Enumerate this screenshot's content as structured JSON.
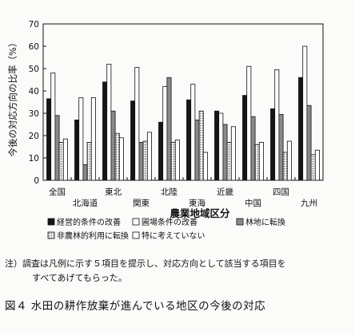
{
  "chart_data": {
    "type": "bar",
    "ylabel": "今後の対応方向の比率（%）",
    "xlabel": "農業地域区分",
    "ylim": [
      0,
      70
    ],
    "yticks": [
      0,
      10,
      20,
      30,
      40,
      50,
      60,
      70
    ],
    "grid": false,
    "legend_position": "bottom",
    "categories": [
      "全国",
      "北海道",
      "東北",
      "関東",
      "北陸",
      "東海",
      "近畿",
      "中国",
      "四国",
      "九州"
    ],
    "series": [
      {
        "name": "経営的条件の改善",
        "color": "#151515",
        "pattern": "solid",
        "values": [
          36.5,
          27,
          44,
          35.5,
          26,
          36,
          31,
          38,
          32,
          46
        ]
      },
      {
        "name": "圃場条件の改善",
        "color": "#ffffff",
        "pattern": "open",
        "values": [
          48,
          37,
          52,
          50.5,
          42,
          43,
          30,
          51,
          49.5,
          60
        ]
      },
      {
        "name": "林地に転換",
        "color": "#8a8a8a",
        "pattern": "gray",
        "values": [
          29,
          7,
          31,
          17,
          46,
          27,
          25,
          28.5,
          29.5,
          33.5
        ]
      },
      {
        "name": "非農林的利用に転換",
        "color": "#d4d4d4",
        "pattern": "dotted",
        "values": [
          17,
          17,
          21,
          17.5,
          17,
          31,
          17,
          16,
          12.5,
          11.5
        ]
      },
      {
        "name": "特に考えていない",
        "color": "#ffffff",
        "pattern": "open",
        "values": [
          18.5,
          37,
          19,
          21.5,
          18,
          12.5,
          24,
          17,
          17.5,
          13.5
        ]
      }
    ]
  },
  "note": {
    "line1": "注）調査は凡例に示す５項目を提示し、対応方向として該当する項目を",
    "line2": "すべてあげてもらった。"
  },
  "caption": "図４ 水田の耕作放棄が進んでいる地区の今後の対応"
}
